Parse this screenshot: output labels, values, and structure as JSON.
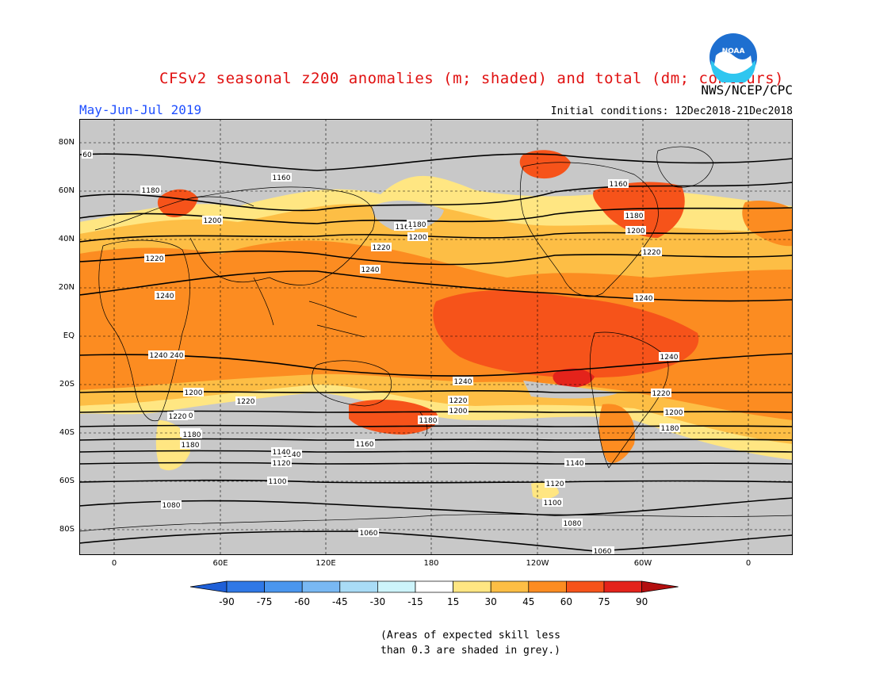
{
  "title": "CFSv2 seasonal z200 anomalies (m; shaded) and total (dm; contours)",
  "agency": "NWS/NCEP/CPC",
  "period": "May-Jun-Jul 2019",
  "initial_conditions": "Initial conditions: 12Dec2018-21Dec2018",
  "logo_text": "NOAA",
  "lat_labels": [
    "80N",
    "60N",
    "40N",
    "20N",
    "EQ",
    "20S",
    "40S",
    "60S",
    "80S"
  ],
  "lon_labels": [
    "0",
    "60E",
    "120E",
    "180",
    "120W",
    "60W",
    "0"
  ],
  "colorbar": {
    "labels": [
      "-90",
      "-75",
      "-60",
      "-45",
      "-30",
      "-15",
      "15",
      "30",
      "45",
      "60",
      "75",
      "90"
    ],
    "colors": [
      "#1e5fd7",
      "#2f78e6",
      "#4a96ee",
      "#79b8f3",
      "#a9dcf6",
      "#cdf4fb",
      "#ffffff",
      "#ffe682",
      "#fdbe45",
      "#fc8c21",
      "#f6531a",
      "#e4231b",
      "#b30f0f"
    ]
  },
  "note_line1": "(Areas of expected skill less",
  "note_line2": "than 0.3 are shaded in grey.)",
  "contour_labels": [
    "60",
    "1160",
    "1180",
    "1200",
    "1220",
    "1240",
    "1240",
    "1220",
    "1200",
    "1180",
    "1160",
    "1140",
    "1120",
    "1100",
    "1080",
    "1060",
    "1160",
    "1180",
    "1200",
    "1220",
    "1240",
    "1240",
    "1220",
    "1200",
    "1180",
    "1120",
    "1100",
    "1080",
    "1060",
    "1160",
    "1180",
    "1200",
    "1220",
    "1240",
    "1240",
    "1220",
    "1200",
    "1180",
    "1140",
    "1140",
    "1220",
    "1240",
    "1220",
    "1200",
    "1180",
    "1060"
  ]
}
